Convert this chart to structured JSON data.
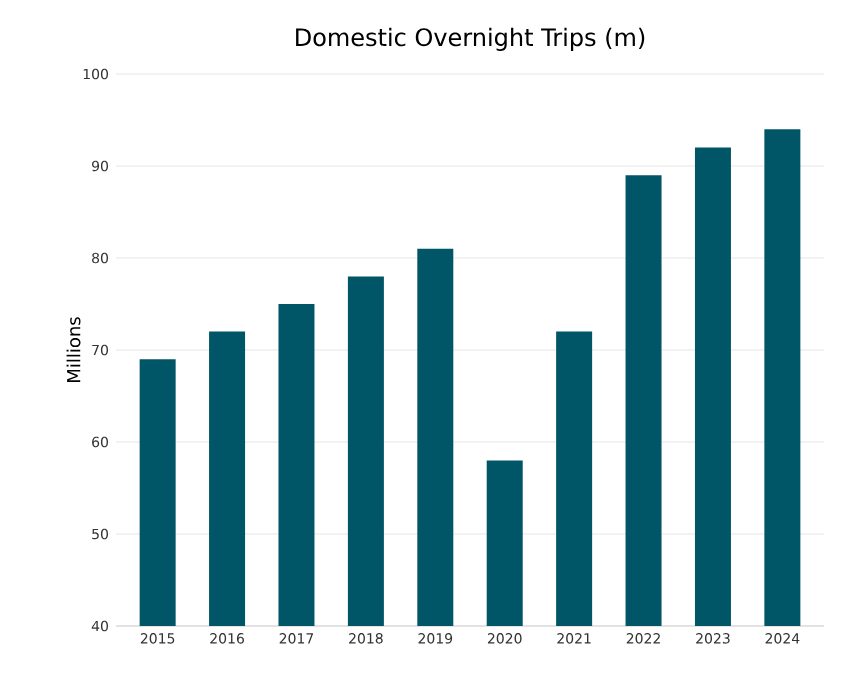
{
  "chart_data": {
    "type": "bar",
    "title": "Domestic Overnight Trips (m)",
    "ylabel": "Millions",
    "categories": [
      "2015",
      "2016",
      "2017",
      "2018",
      "2019",
      "2020",
      "2021",
      "2022",
      "2023",
      "2024"
    ],
    "values": [
      69,
      72,
      75,
      78,
      81,
      58,
      72,
      89,
      92,
      94
    ],
    "color": "#005566",
    "ylim": [
      40,
      100
    ],
    "yticks": [
      40,
      50,
      60,
      70,
      80,
      90,
      100
    ],
    "grid": "y"
  }
}
